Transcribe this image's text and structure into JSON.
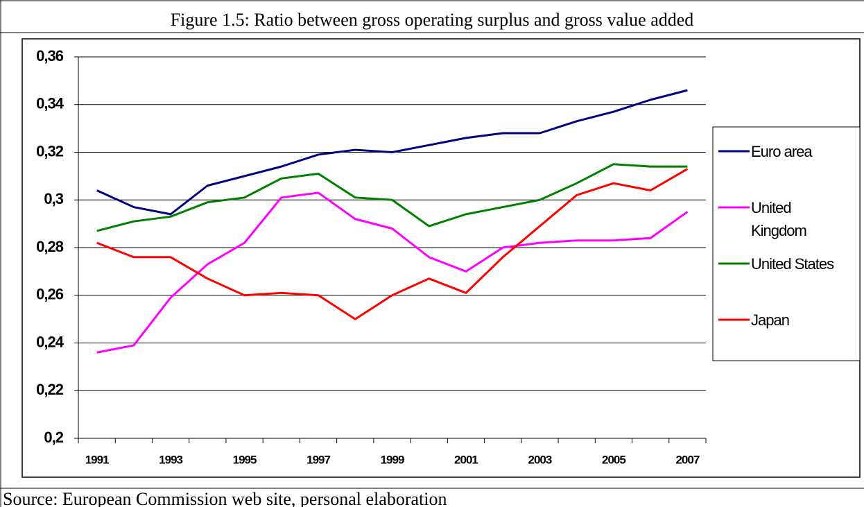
{
  "chart_data": {
    "type": "line",
    "title": "Figure 1.5: Ratio between gross operating surplus and gross value added",
    "categories": [
      "1991",
      null,
      "1993",
      null,
      "1995",
      null,
      "1997",
      null,
      "1999",
      null,
      "2001",
      null,
      "2003",
      null,
      "2005",
      null,
      "2007"
    ],
    "series": [
      {
        "name": "Euro area",
        "color": "#000080",
        "values": [
          0.304,
          0.297,
          0.294,
          0.306,
          0.31,
          0.314,
          0.319,
          0.321,
          0.32,
          0.323,
          0.326,
          0.328,
          0.328,
          0.333,
          0.337,
          0.342,
          0.346
        ]
      },
      {
        "name": "United Kingdom",
        "color": "#ff00ff",
        "values": [
          0.236,
          0.239,
          0.259,
          0.273,
          0.282,
          0.301,
          0.303,
          0.292,
          0.288,
          0.276,
          0.27,
          0.28,
          0.282,
          0.283,
          0.283,
          0.284,
          0.295
        ]
      },
      {
        "name": "United States",
        "color": "#008000",
        "values": [
          0.287,
          0.291,
          0.293,
          0.299,
          0.301,
          0.309,
          0.311,
          0.301,
          0.3,
          0.289,
          0.294,
          0.297,
          0.3,
          0.307,
          0.315,
          0.314,
          0.314
        ]
      },
      {
        "name": "Japan",
        "color": "#ff0000",
        "values": [
          0.282,
          0.276,
          0.276,
          0.267,
          0.26,
          0.261,
          0.26,
          0.25,
          0.26,
          0.267,
          0.261,
          0.276,
          0.289,
          0.302,
          0.307,
          0.304,
          0.313
        ]
      }
    ],
    "ylim": [
      0.2,
      0.36
    ],
    "yticks": [
      {
        "value": 0.2,
        "label": "0,2"
      },
      {
        "value": 0.22,
        "label": "0,22"
      },
      {
        "value": 0.24,
        "label": "0,24"
      },
      {
        "value": 0.26,
        "label": "0,26"
      },
      {
        "value": 0.28,
        "label": "0,28"
      },
      {
        "value": 0.3,
        "label": "0,3"
      },
      {
        "value": 0.32,
        "label": "0,32"
      },
      {
        "value": 0.34,
        "label": "0,34"
      },
      {
        "value": 0.36,
        "label": "0,36"
      }
    ],
    "grid": true,
    "legend": "right"
  },
  "source": "Source: European Commission web site, personal elaboration"
}
